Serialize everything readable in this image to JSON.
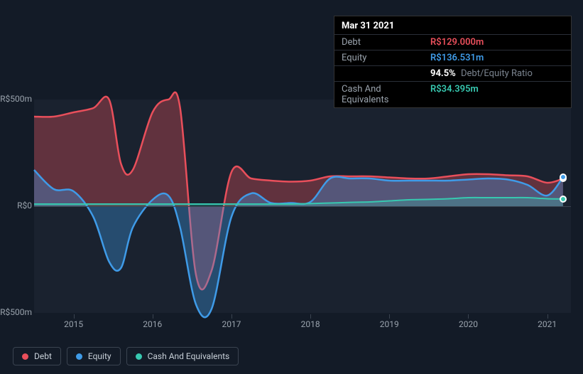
{
  "tooltip": {
    "date": "Mar 31 2021",
    "rows": [
      {
        "label": "Debt",
        "value": "R$129.000m",
        "cls": "debt"
      },
      {
        "label": "Equity",
        "value": "R$136.531m",
        "cls": "equity"
      }
    ],
    "ratio_value": "94.5%",
    "ratio_label": "Debt/Equity Ratio",
    "cash_label": "Cash And Equivalents",
    "cash_value": "R$34.395m"
  },
  "chart": {
    "type": "area-line",
    "background_color": "#1a222f",
    "page_background": "#131b27",
    "y": {
      "min": -500,
      "max": 500,
      "ticks": [
        {
          "v": 500,
          "label": "R$500m"
        },
        {
          "v": 0,
          "label": "R$0"
        },
        {
          "v": -500,
          "label": "-R$500m"
        }
      ]
    },
    "x": {
      "min": 2014.5,
      "max": 2021.3,
      "ticks": [
        2015,
        2016,
        2017,
        2018,
        2019,
        2020,
        2021
      ]
    },
    "series": {
      "debt": {
        "color": "#e94f5b",
        "fill_opacity": 0.35,
        "line_width": 2.5,
        "points": [
          [
            2014.5,
            420
          ],
          [
            2014.75,
            420
          ],
          [
            2015.0,
            440
          ],
          [
            2015.25,
            460
          ],
          [
            2015.45,
            500
          ],
          [
            2015.6,
            200
          ],
          [
            2015.75,
            170
          ],
          [
            2016.0,
            440
          ],
          [
            2016.2,
            500
          ],
          [
            2016.35,
            460
          ],
          [
            2016.55,
            -320
          ],
          [
            2016.75,
            -300
          ],
          [
            2017.0,
            160
          ],
          [
            2017.25,
            130
          ],
          [
            2017.5,
            120
          ],
          [
            2017.75,
            115
          ],
          [
            2018.0,
            120
          ],
          [
            2018.25,
            140
          ],
          [
            2018.5,
            140
          ],
          [
            2018.75,
            140
          ],
          [
            2019.0,
            135
          ],
          [
            2019.25,
            130
          ],
          [
            2019.5,
            130
          ],
          [
            2019.75,
            140
          ],
          [
            2020.0,
            150
          ],
          [
            2020.25,
            150
          ],
          [
            2020.5,
            145
          ],
          [
            2020.75,
            140
          ],
          [
            2021.0,
            110
          ],
          [
            2021.2,
            129
          ]
        ]
      },
      "equity": {
        "color": "#3f9be8",
        "fill_opacity": 0.35,
        "line_width": 2.5,
        "points": [
          [
            2014.5,
            170
          ],
          [
            2014.75,
            80
          ],
          [
            2015.0,
            70
          ],
          [
            2015.25,
            -50
          ],
          [
            2015.45,
            -260
          ],
          [
            2015.6,
            -290
          ],
          [
            2015.75,
            -100
          ],
          [
            2016.0,
            30
          ],
          [
            2016.2,
            50
          ],
          [
            2016.35,
            -100
          ],
          [
            2016.55,
            -460
          ],
          [
            2016.75,
            -480
          ],
          [
            2017.0,
            -50
          ],
          [
            2017.25,
            60
          ],
          [
            2017.5,
            15
          ],
          [
            2017.75,
            15
          ],
          [
            2018.0,
            20
          ],
          [
            2018.25,
            130
          ],
          [
            2018.5,
            130
          ],
          [
            2018.75,
            130
          ],
          [
            2019.0,
            120
          ],
          [
            2019.25,
            120
          ],
          [
            2019.5,
            120
          ],
          [
            2019.75,
            120
          ],
          [
            2020.0,
            125
          ],
          [
            2020.25,
            130
          ],
          [
            2020.5,
            125
          ],
          [
            2020.75,
            100
          ],
          [
            2021.0,
            50
          ],
          [
            2021.2,
            136
          ]
        ]
      },
      "cash": {
        "color": "#37c8b0",
        "fill_opacity": 0.25,
        "line_width": 2,
        "points": [
          [
            2014.5,
            10
          ],
          [
            2014.75,
            10
          ],
          [
            2015.0,
            10
          ],
          [
            2015.25,
            10
          ],
          [
            2015.45,
            10
          ],
          [
            2015.6,
            10
          ],
          [
            2015.75,
            10
          ],
          [
            2016.0,
            10
          ],
          [
            2016.2,
            10
          ],
          [
            2016.35,
            10
          ],
          [
            2016.55,
            10
          ],
          [
            2016.75,
            10
          ],
          [
            2017.0,
            10
          ],
          [
            2017.25,
            10
          ],
          [
            2017.5,
            10
          ],
          [
            2017.75,
            10
          ],
          [
            2018.0,
            12
          ],
          [
            2018.25,
            15
          ],
          [
            2018.5,
            18
          ],
          [
            2018.75,
            20
          ],
          [
            2019.0,
            25
          ],
          [
            2019.25,
            30
          ],
          [
            2019.5,
            32
          ],
          [
            2019.75,
            35
          ],
          [
            2020.0,
            40
          ],
          [
            2020.25,
            40
          ],
          [
            2020.5,
            40
          ],
          [
            2020.75,
            40
          ],
          [
            2021.0,
            35
          ],
          [
            2021.2,
            34
          ]
        ]
      }
    },
    "markers_x": 2021.2
  },
  "legend": [
    {
      "name": "debt",
      "label": "Debt",
      "color": "#e94f5b"
    },
    {
      "name": "equity",
      "label": "Equity",
      "color": "#3f9be8"
    },
    {
      "name": "cash",
      "label": "Cash And Equivalents",
      "color": "#37c8b0"
    }
  ]
}
